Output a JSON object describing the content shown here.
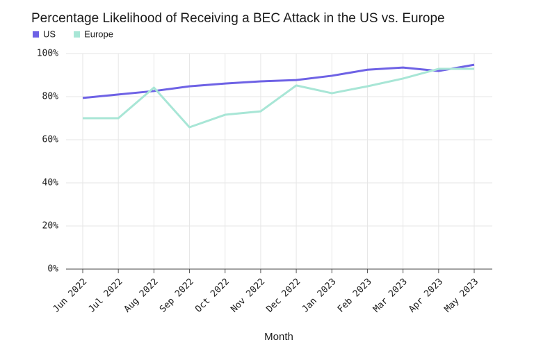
{
  "chart_data": {
    "type": "line",
    "title": "Percentage Likelihood of Receiving a BEC Attack in the US vs. Europe",
    "x_label": "Month",
    "categories": [
      "Jun 2022",
      "Jul 2022",
      "Aug 2022",
      "Sep 2022",
      "Oct 2022",
      "Nov 2022",
      "Dec 2022",
      "Jan 2023",
      "Feb 2023",
      "Mar 2023",
      "Apr 2023",
      "May 2023"
    ],
    "series": [
      {
        "name": "US",
        "color": "#6e62e5",
        "values": [
          79.4,
          81,
          82.6,
          84.8,
          86.1,
          87.1,
          87.7,
          89.7,
          92.5,
          93.5,
          91.9,
          94.8
        ]
      },
      {
        "name": "Europe",
        "color": "#a8e6d6",
        "values": [
          70,
          70,
          84.2,
          65.8,
          71.6,
          73.2,
          85.2,
          81.6,
          84.8,
          88.4,
          92.9,
          92.9
        ]
      }
    ],
    "ylim": [
      0,
      100
    ],
    "yticks": [
      {
        "value": 0,
        "label": "0%"
      },
      {
        "value": 20,
        "label": "20%"
      },
      {
        "value": 40,
        "label": "40%"
      },
      {
        "value": 60,
        "label": "60%"
      },
      {
        "value": 80,
        "label": "80%"
      },
      {
        "value": 100,
        "label": "100%"
      }
    ],
    "grid": true
  }
}
